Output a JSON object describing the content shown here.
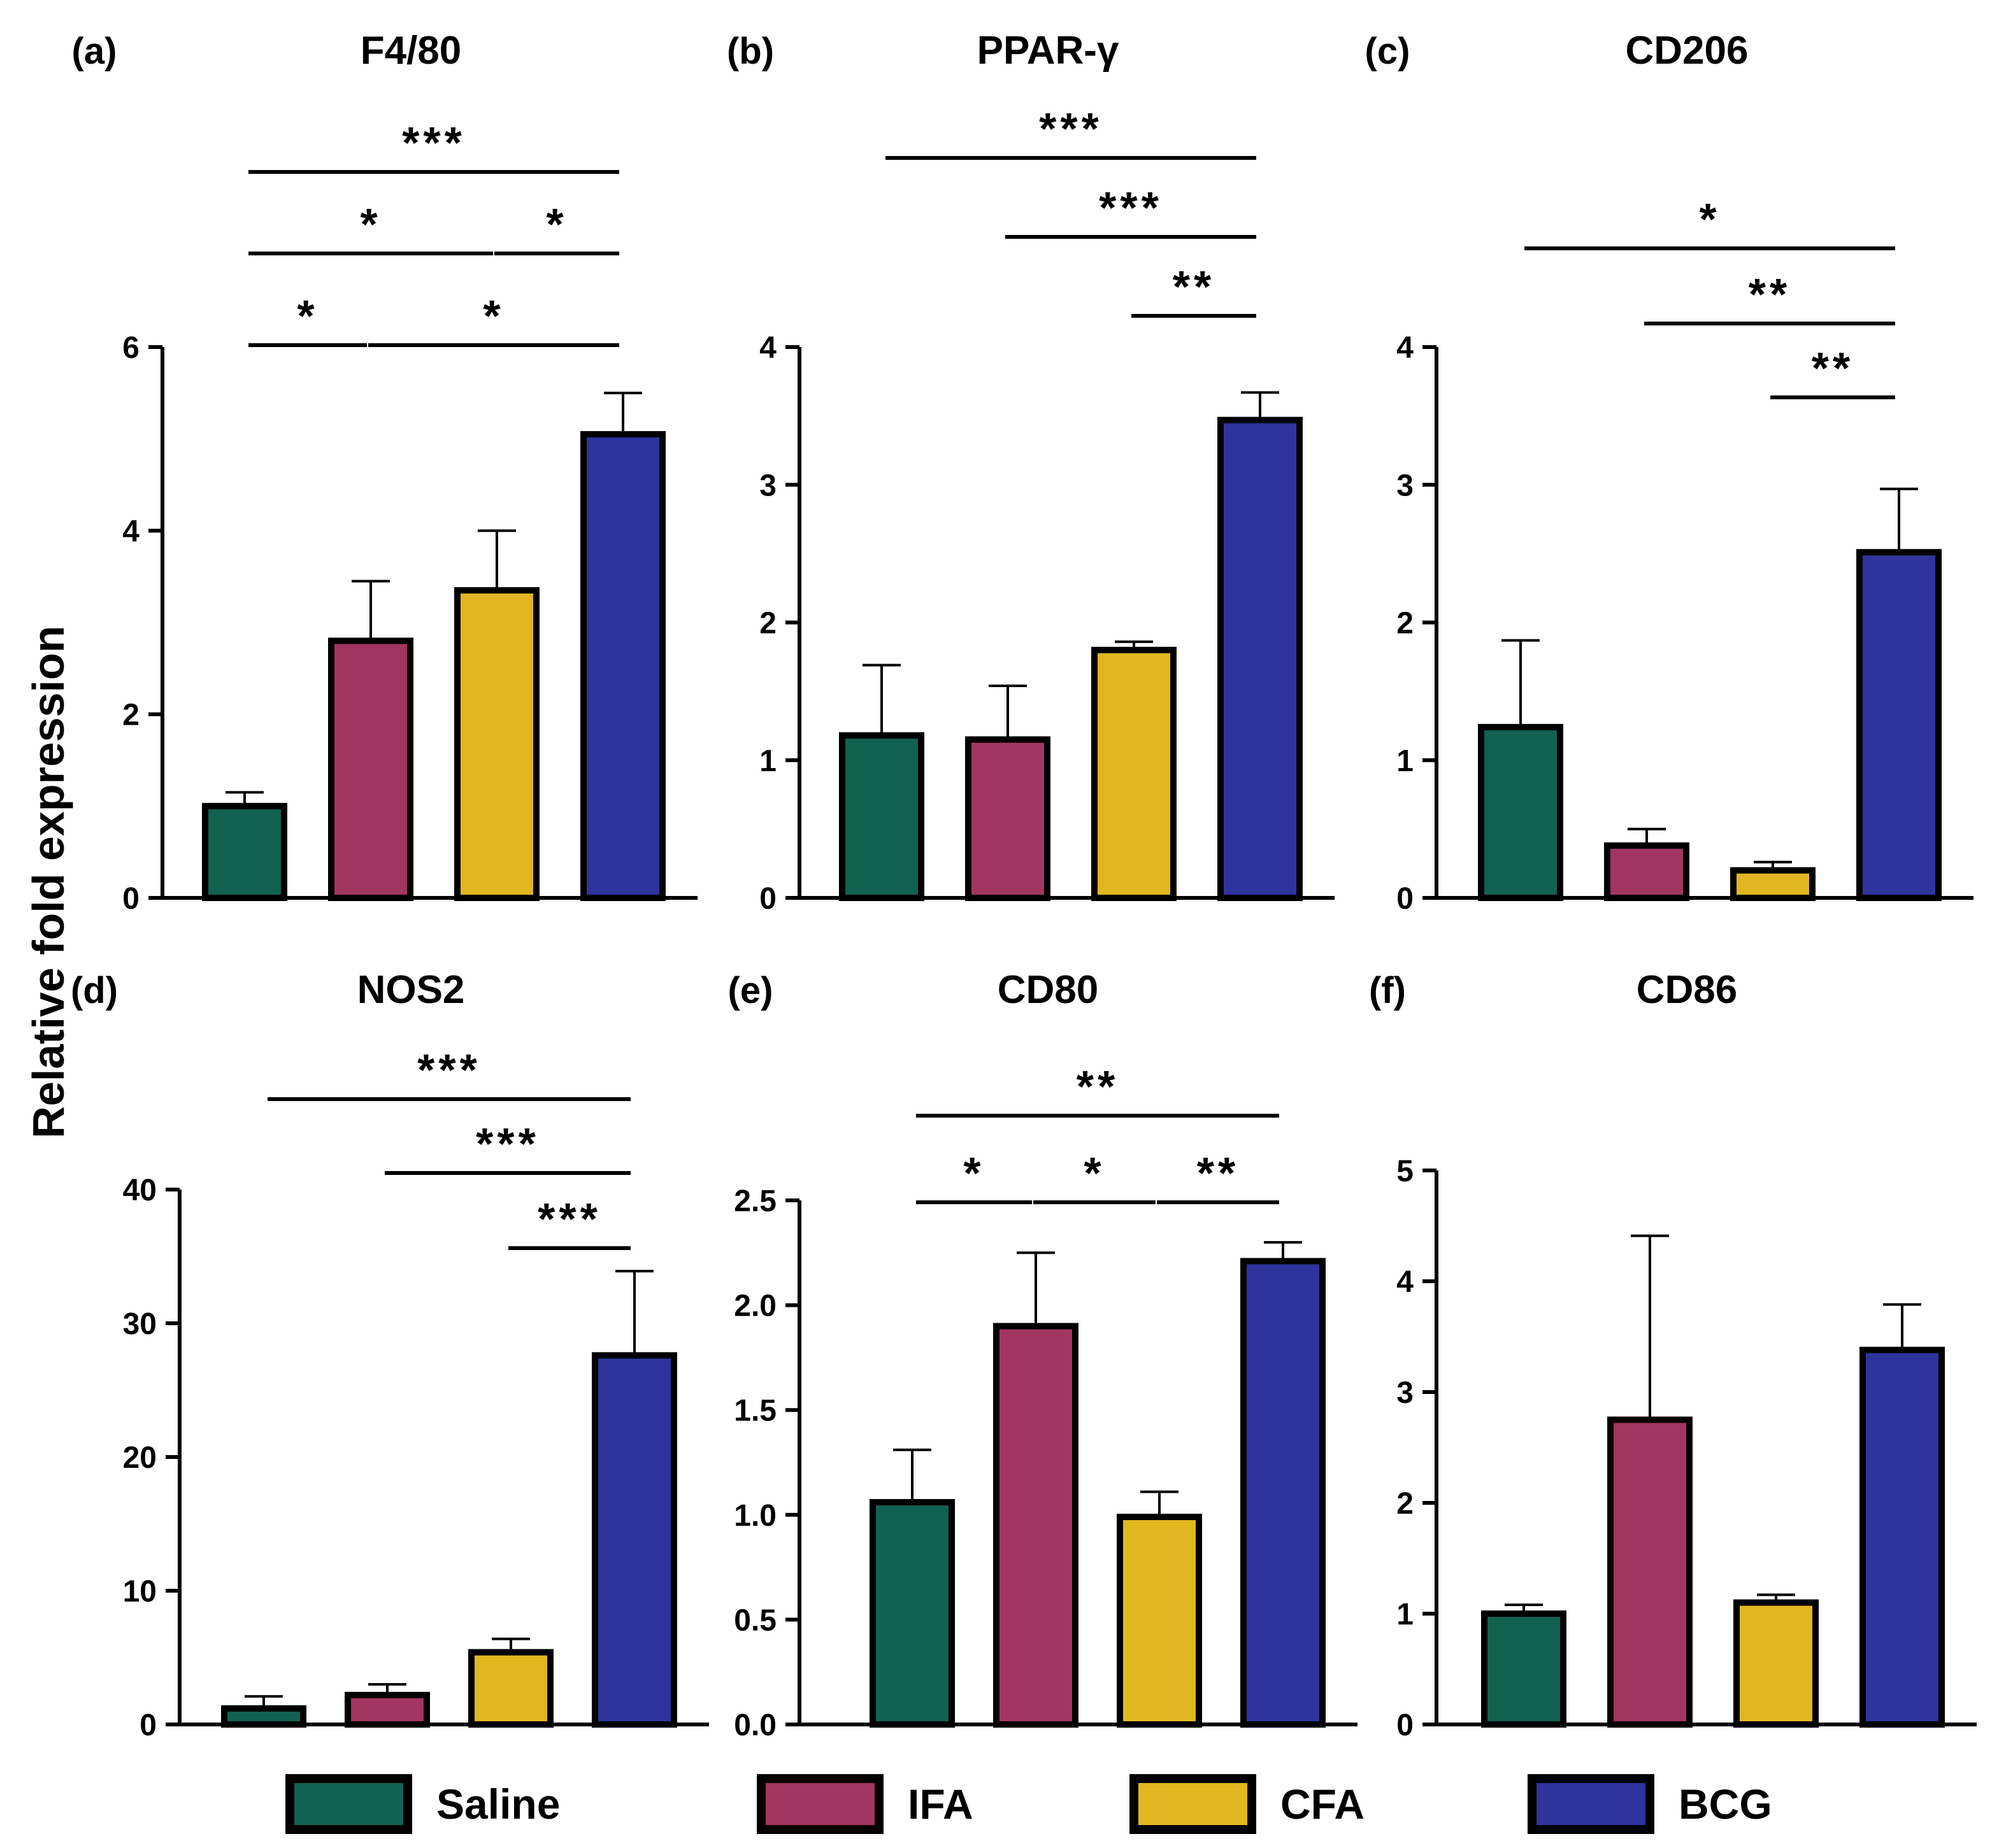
{
  "y_axis_label": "Relative fold expression",
  "legend": {
    "items": [
      {
        "label": "Saline",
        "color": "#116151"
      },
      {
        "label": "IFA",
        "color": "#A23661"
      },
      {
        "label": "CFA",
        "color": "#E0B720"
      },
      {
        "label": "BCG",
        "color": "#2E349C"
      }
    ]
  },
  "chart_data": [
    {
      "type": "bar",
      "panel": "(a)",
      "title": "F4/80",
      "categories": [
        "Saline",
        "IFA",
        "CFA",
        "BCG"
      ],
      "values": [
        1.0,
        2.8,
        3.35,
        5.05
      ],
      "errors": [
        0.15,
        0.65,
        0.65,
        0.45
      ],
      "ylim": [
        0,
        6
      ],
      "yticks": [
        "0",
        "2",
        "4",
        "6"
      ],
      "significance": [
        {
          "from": 0,
          "to": 3,
          "label": "***"
        },
        {
          "from": 0,
          "to": 2,
          "label": "*"
        },
        {
          "from": 2,
          "to": 3,
          "label": "*"
        },
        {
          "from": 0,
          "to": 1,
          "label": "*"
        },
        {
          "from": 1,
          "to": 3,
          "label": "*"
        }
      ]
    },
    {
      "type": "bar",
      "panel": "(b)",
      "title": "PPAR-γ",
      "categories": [
        "Saline",
        "IFA",
        "CFA",
        "BCG"
      ],
      "values": [
        1.18,
        1.15,
        1.8,
        3.47
      ],
      "errors": [
        0.51,
        0.39,
        0.06,
        0.2
      ],
      "ylim": [
        0,
        4
      ],
      "yticks": [
        "0",
        "1",
        "2",
        "3",
        "4"
      ],
      "significance": [
        {
          "from": 0,
          "to": 3,
          "label": "***"
        },
        {
          "from": 1,
          "to": 3,
          "label": "***"
        },
        {
          "from": 2,
          "to": 3,
          "label": "**"
        }
      ]
    },
    {
      "type": "bar",
      "panel": "(c)",
      "title": "CD206",
      "categories": [
        "Saline",
        "IFA",
        "CFA",
        "BCG"
      ],
      "values": [
        1.24,
        0.38,
        0.2,
        2.51
      ],
      "errors": [
        0.63,
        0.12,
        0.06,
        0.46
      ],
      "ylim": [
        0,
        4
      ],
      "yticks": [
        "0",
        "1",
        "2",
        "3",
        "4"
      ],
      "significance": [
        {
          "from": 0,
          "to": 3,
          "label": "*"
        },
        {
          "from": 1,
          "to": 3,
          "label": "**"
        },
        {
          "from": 2,
          "to": 3,
          "label": "**"
        }
      ]
    },
    {
      "type": "bar",
      "panel": "(d)",
      "title": "NOS2",
      "categories": [
        "Saline",
        "IFA",
        "CFA",
        "BCG"
      ],
      "values": [
        1.2,
        2.2,
        5.4,
        27.6
      ],
      "errors": [
        0.9,
        0.8,
        1.0,
        6.3
      ],
      "ylim": [
        0,
        40
      ],
      "yticks": [
        "0",
        "10",
        "20",
        "30",
        "40"
      ],
      "significance": [
        {
          "from": 0,
          "to": 3,
          "label": "***"
        },
        {
          "from": 1,
          "to": 3,
          "label": "***"
        },
        {
          "from": 2,
          "to": 3,
          "label": "***"
        }
      ]
    },
    {
      "type": "bar",
      "panel": "(e)",
      "title": "CD80",
      "categories": [
        "Saline",
        "IFA",
        "CFA",
        "BCG"
      ],
      "values": [
        1.06,
        1.9,
        0.99,
        2.21
      ],
      "errors": [
        0.25,
        0.35,
        0.12,
        0.09
      ],
      "ylim": [
        0,
        2.5
      ],
      "yticks": [
        "0.0",
        "0.5",
        "1.0",
        "1.5",
        "2.0",
        "2.5"
      ],
      "significance": [
        {
          "from": 0,
          "to": 3,
          "label": "**"
        },
        {
          "from": 0,
          "to": 1,
          "label": "*"
        },
        {
          "from": 1,
          "to": 2,
          "label": "*"
        },
        {
          "from": 2,
          "to": 3,
          "label": "**"
        }
      ]
    },
    {
      "type": "bar",
      "panel": "(f)",
      "title": "CD86",
      "categories": [
        "Saline",
        "IFA",
        "CFA",
        "BCG"
      ],
      "values": [
        1.0,
        2.75,
        1.1,
        3.38
      ],
      "errors": [
        0.08,
        1.66,
        0.07,
        0.41
      ],
      "ylim": [
        0,
        5
      ],
      "yticks": [
        "0",
        "1",
        "2",
        "3",
        "4",
        "5"
      ],
      "significance": []
    }
  ]
}
